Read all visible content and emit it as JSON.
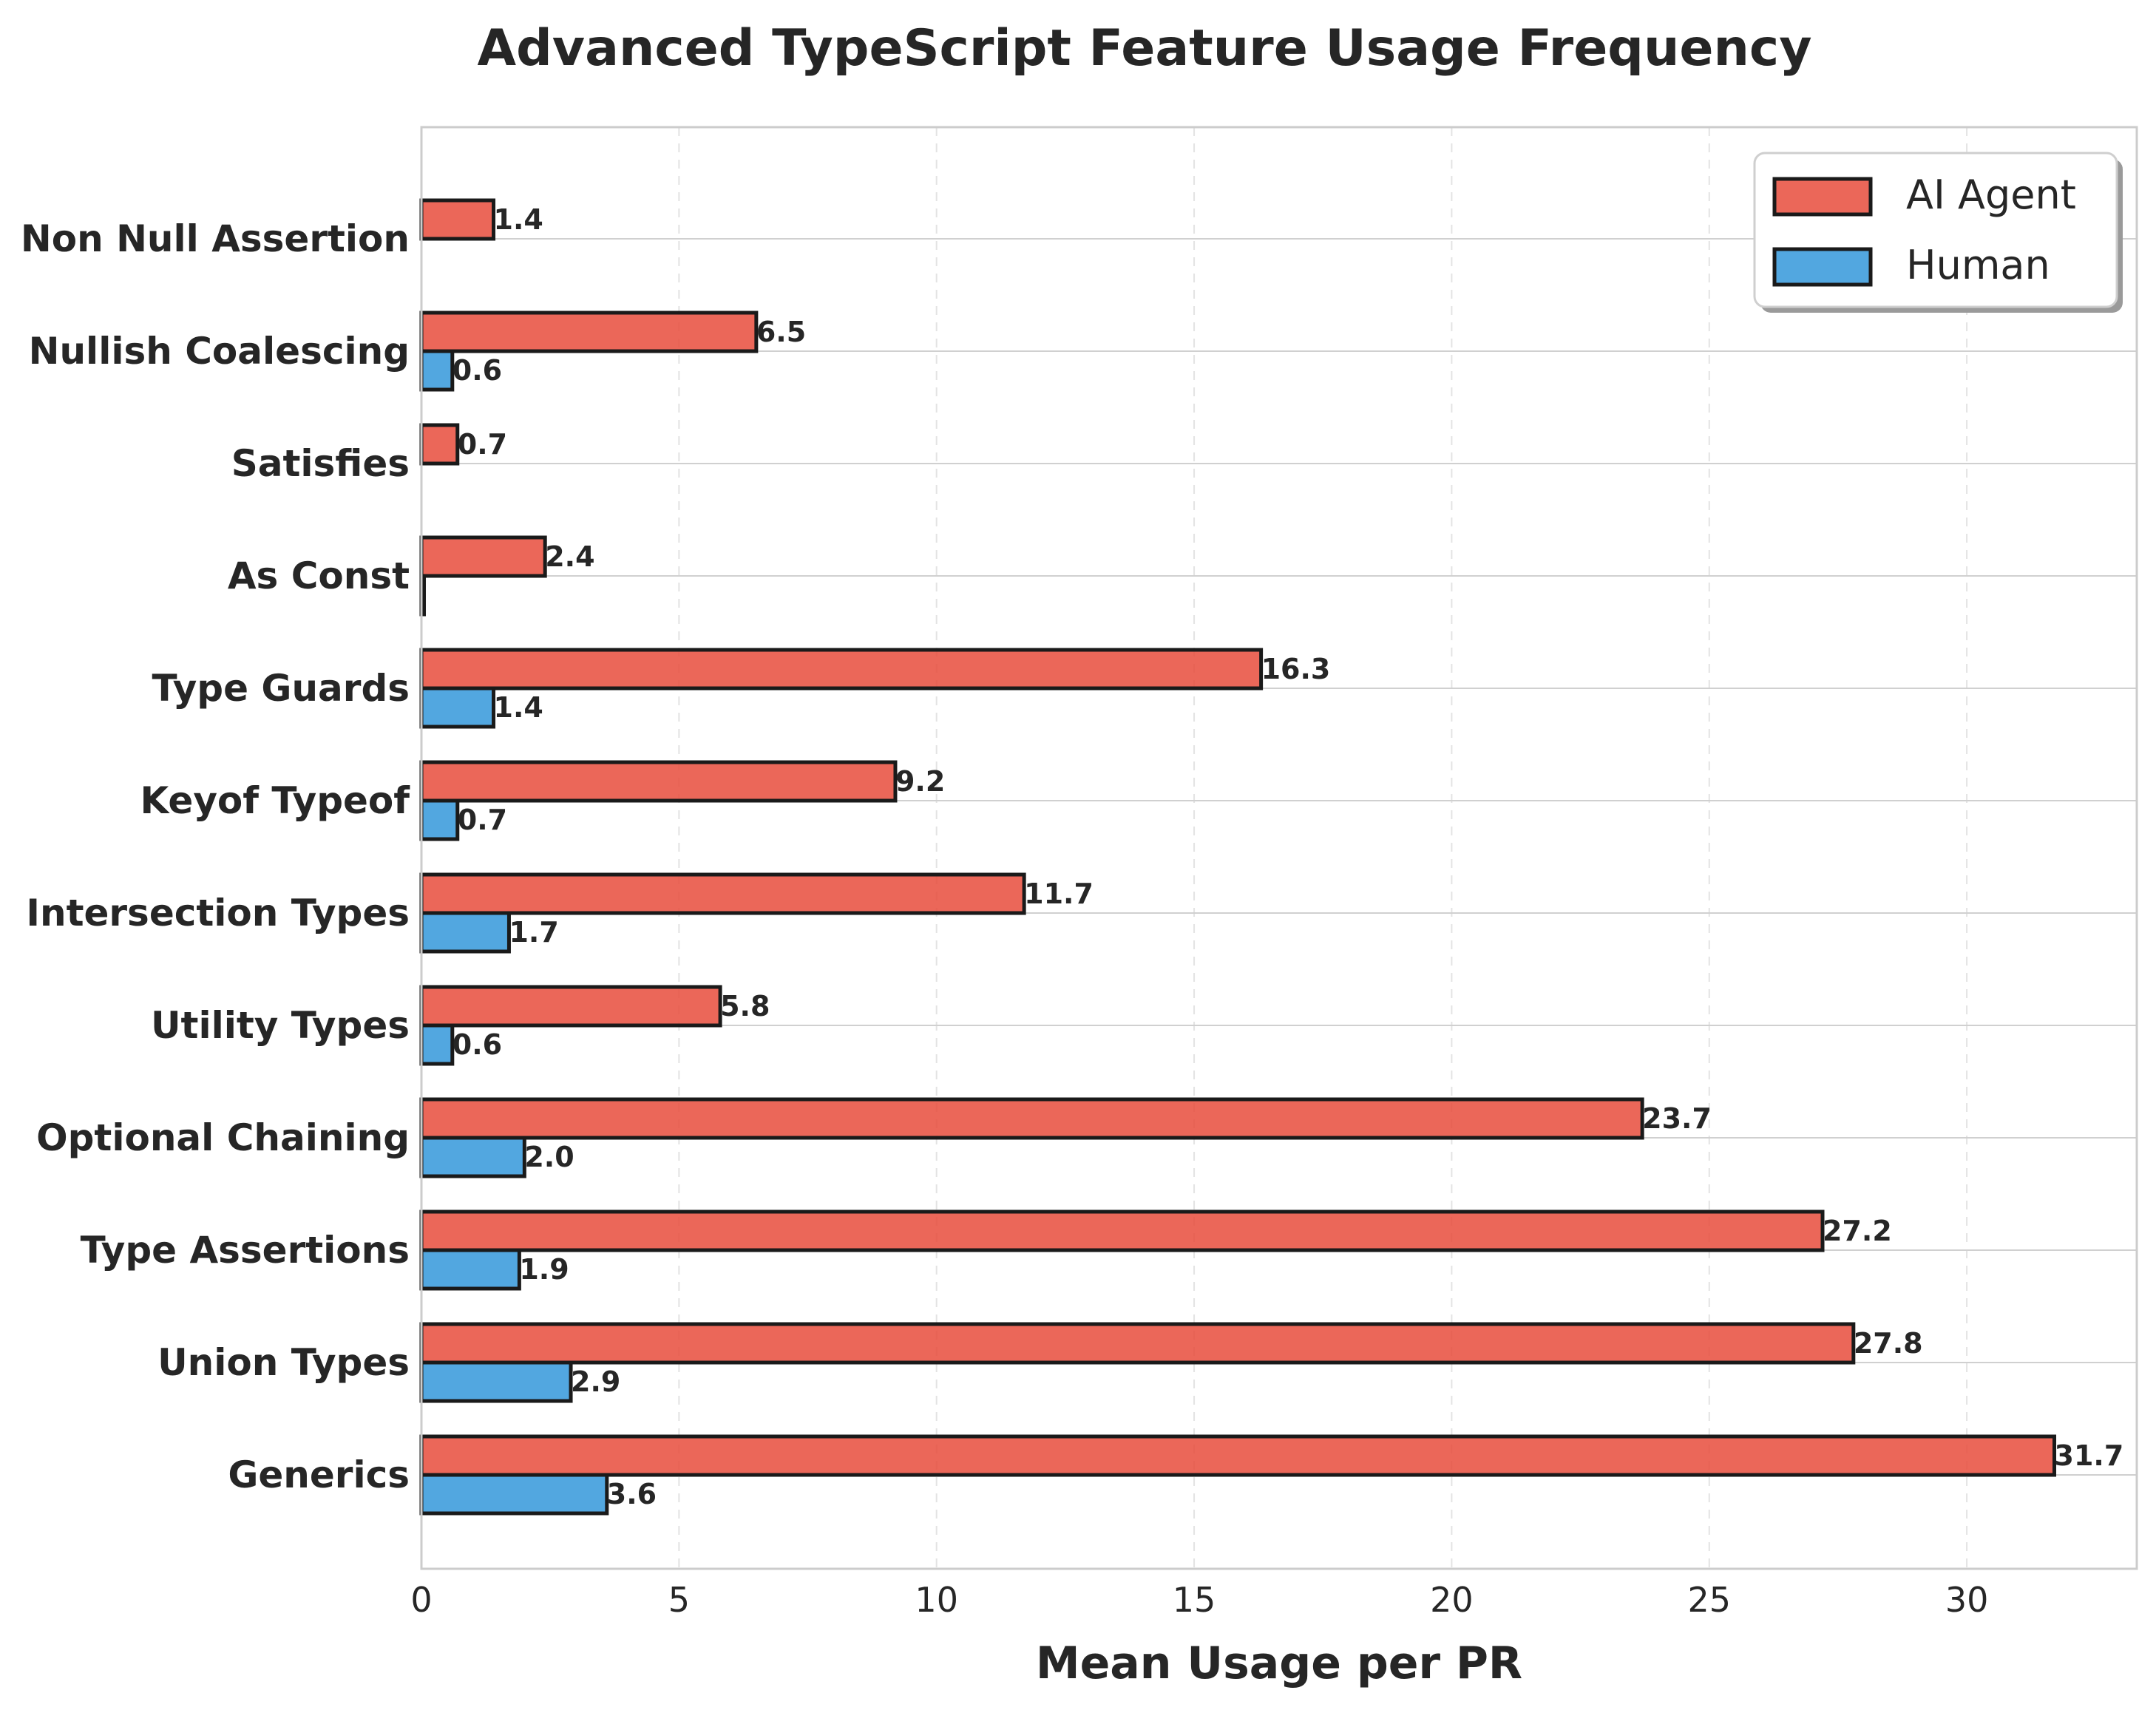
{
  "chart_data": {
    "type": "bar",
    "orientation": "horizontal",
    "title": "Advanced TypeScript Feature Usage Frequency",
    "xlabel": "Mean Usage per PR",
    "ylabel": "",
    "xlim": [
      0,
      33.3
    ],
    "xticks": [
      0,
      5,
      10,
      15,
      20,
      25,
      30
    ],
    "grid": true,
    "legend_position": "top-right",
    "categories": [
      "Non Null Assertion",
      "Nullish Coalescing",
      "Satisfies",
      "As Const",
      "Type Guards",
      "Keyof Typeof",
      "Intersection Types",
      "Utility Types",
      "Optional Chaining",
      "Type Assertions",
      "Union Types",
      "Generics"
    ],
    "series": [
      {
        "name": "AI Agent",
        "color": "#e74c3c",
        "values": [
          1.4,
          6.5,
          0.7,
          2.4,
          16.3,
          9.2,
          11.7,
          5.8,
          23.7,
          27.2,
          27.8,
          31.7
        ],
        "labels": [
          "1.4",
          "6.5",
          "0.7",
          "2.4",
          "16.3",
          "9.2",
          "11.7",
          "5.8",
          "23.7",
          "27.2",
          "27.8",
          "31.7"
        ]
      },
      {
        "name": "Human",
        "color": "#3498db",
        "values": [
          0.0,
          0.6,
          0.0,
          0.05,
          1.4,
          0.7,
          1.7,
          0.6,
          2.0,
          1.9,
          2.9,
          3.6
        ],
        "labels": [
          "",
          "0.6",
          "",
          "",
          "1.4",
          "0.7",
          "1.7",
          "0.6",
          "2.0",
          "1.9",
          "2.9",
          "3.6"
        ]
      }
    ]
  }
}
